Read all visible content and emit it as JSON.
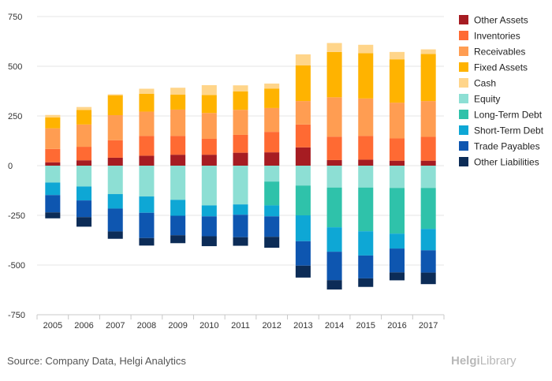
{
  "chart_data": {
    "type": "bar",
    "stacked": true,
    "title": "",
    "xlabel": "",
    "ylabel": "",
    "ylim": [
      -750,
      750
    ],
    "yticks": [
      750,
      500,
      250,
      0,
      -250,
      -500,
      -750
    ],
    "grid": true,
    "legend_position": "right",
    "categories": [
      "2005",
      "2006",
      "2007",
      "2008",
      "2009",
      "2010",
      "2011",
      "2012",
      "2013",
      "2014",
      "2015",
      "2016",
      "2017"
    ],
    "series": [
      {
        "name": "Other Assets",
        "color": "#a61c22",
        "values": [
          17,
          27,
          40,
          50,
          55,
          55,
          65,
          67,
          92,
          28,
          30,
          25,
          25
        ]
      },
      {
        "name": "Inventories",
        "color": "#ff6a33",
        "values": [
          67,
          68,
          88,
          100,
          95,
          80,
          90,
          103,
          115,
          118,
          120,
          112,
          120
        ]
      },
      {
        "name": "Receivables",
        "color": "#ff9d52",
        "values": [
          104,
          112,
          126,
          122,
          132,
          130,
          126,
          120,
          118,
          198,
          188,
          180,
          180
        ]
      },
      {
        "name": "Fixed Assets",
        "color": "#ffb300",
        "values": [
          55,
          73,
          100,
          90,
          75,
          90,
          93,
          98,
          180,
          228,
          228,
          218,
          237
        ]
      },
      {
        "name": "Cash",
        "color": "#ffd58a",
        "values": [
          12,
          15,
          5,
          25,
          35,
          50,
          30,
          25,
          55,
          45,
          42,
          37,
          23
        ]
      },
      {
        "name": "Equity",
        "color": "#8ddfd4",
        "values": [
          -85,
          -105,
          -143,
          -155,
          -172,
          -200,
          -195,
          -80,
          -100,
          -110,
          -110,
          -112,
          -112
        ]
      },
      {
        "name": "Long-Term Debt",
        "color": "#2fc2aa",
        "values": [
          0,
          0,
          0,
          0,
          0,
          0,
          0,
          -120,
          -150,
          -200,
          -220,
          -230,
          -206
        ]
      },
      {
        "name": "Short-Term Debt",
        "color": "#0ea7d5",
        "values": [
          -63,
          -70,
          -73,
          -82,
          -80,
          -55,
          -52,
          -55,
          -130,
          -123,
          -122,
          -75,
          -108
        ]
      },
      {
        "name": "Trade Payables",
        "color": "#0e56b0",
        "values": [
          -87,
          -84,
          -115,
          -127,
          -98,
          -100,
          -113,
          -103,
          -123,
          -143,
          -115,
          -120,
          -112
        ]
      },
      {
        "name": "Other Liabilities",
        "color": "#0c2c57",
        "values": [
          -30,
          -48,
          -37,
          -38,
          -40,
          -50,
          -43,
          -55,
          -60,
          -47,
          -43,
          -40,
          -58
        ]
      }
    ]
  },
  "footer": {
    "source": "Source: Company Data, Helgi Analytics",
    "brand_a": "Helgi",
    "brand_b": "Library"
  }
}
